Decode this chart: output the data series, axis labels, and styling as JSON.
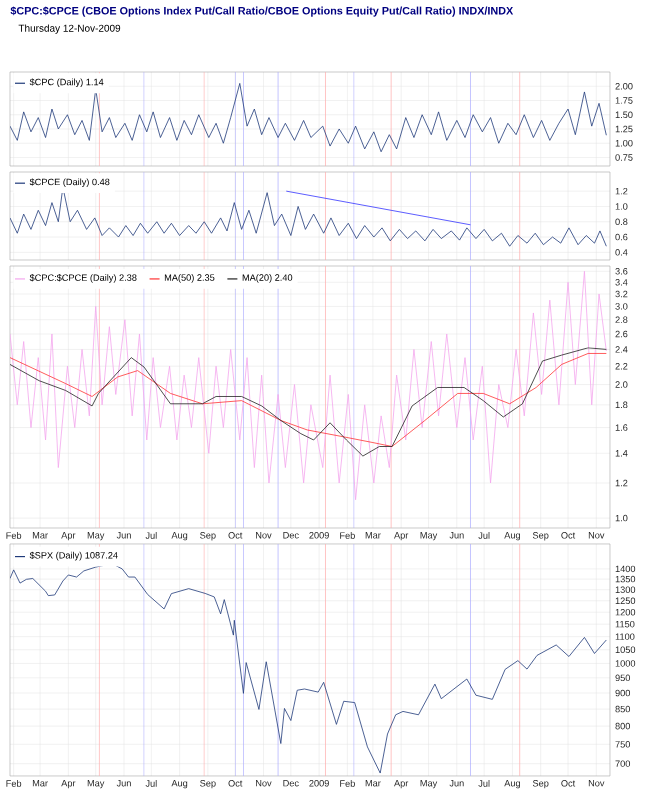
{
  "chart_data": [
    {
      "type": "line",
      "title": "$CPC:$CPCE (CBOE Options Index Put/Call Ratio/CBOE Options Equity Put/Call Ratio) INDX/INDX",
      "annotations": [
        "Thursday 12-Nov-2009"
      ],
      "series": [
        {
          "name": "$CPC (Daily) 1.14",
          "color": "#1f3a7a",
          "x": [
            "2008-01-28",
            "2008-02-05",
            "2008-02-12",
            "2008-02-20",
            "2008-02-28",
            "2008-03-07",
            "2008-03-14",
            "2008-03-21",
            "2008-03-31",
            "2008-04-08",
            "2008-04-16",
            "2008-04-24",
            "2008-05-01",
            "2008-05-08",
            "2008-05-16",
            "2008-05-23",
            "2008-06-02",
            "2008-06-10",
            "2008-06-18",
            "2008-06-26",
            "2008-07-03",
            "2008-07-11",
            "2008-07-21",
            "2008-07-29",
            "2008-08-06",
            "2008-08-14",
            "2008-08-22",
            "2008-09-02",
            "2008-09-10",
            "2008-09-18",
            "2008-09-26",
            "2008-10-06",
            "2008-10-14",
            "2008-10-22",
            "2008-10-30",
            "2008-11-07",
            "2008-11-17",
            "2008-11-25",
            "2008-12-05",
            "2008-12-15",
            "2008-12-23",
            "2009-01-05",
            "2009-01-13",
            "2009-01-23",
            "2009-02-02",
            "2009-02-10",
            "2009-02-20",
            "2009-03-02",
            "2009-03-10",
            "2009-03-19",
            "2009-03-27",
            "2009-04-06",
            "2009-04-15",
            "2009-04-24",
            "2009-05-04",
            "2009-05-12",
            "2009-05-21",
            "2009-06-01",
            "2009-06-10",
            "2009-06-19",
            "2009-06-29",
            "2009-07-08",
            "2009-07-17",
            "2009-07-27",
            "2009-08-05",
            "2009-08-14",
            "2009-08-24",
            "2009-09-02",
            "2009-09-11",
            "2009-09-21",
            "2009-10-01",
            "2009-10-09",
            "2009-10-19",
            "2009-10-27",
            "2009-11-04",
            "2009-11-12"
          ],
          "values": [
            1.3,
            1.05,
            1.55,
            1.2,
            1.45,
            1.1,
            1.6,
            1.25,
            1.5,
            1.15,
            1.4,
            1.05,
            1.95,
            1.2,
            1.45,
            1.1,
            1.35,
            1.05,
            1.5,
            1.2,
            1.55,
            1.1,
            1.45,
            1.05,
            1.4,
            1.15,
            1.5,
            1.1,
            1.35,
            1.0,
            1.45,
            2.05,
            1.3,
            1.6,
            1.15,
            1.45,
            1.1,
            1.35,
            1.05,
            1.4,
            1.1,
            1.3,
            0.95,
            1.25,
            1.0,
            1.3,
            0.9,
            1.2,
            0.85,
            1.15,
            0.9,
            1.45,
            1.1,
            1.5,
            1.15,
            1.55,
            1.05,
            1.4,
            1.1,
            1.5,
            1.2,
            1.45,
            1.0,
            1.35,
            1.15,
            1.5,
            1.1,
            1.4,
            1.05,
            1.35,
            1.6,
            1.15,
            1.9,
            1.3,
            1.7,
            1.14
          ]
        }
      ],
      "xlim": [
        "2008-01-28",
        "2009-11-16"
      ],
      "xticks": [
        {
          "value": "2008-02-01",
          "label": null
        },
        {
          "value": "2008-03-01",
          "label": null
        },
        {
          "value": "2008-04-01",
          "label": null
        },
        {
          "value": "2008-05-01",
          "label": null
        },
        {
          "value": "2008-06-01",
          "label": null
        },
        {
          "value": "2008-07-01",
          "label": null
        },
        {
          "value": "2008-08-01",
          "label": null
        },
        {
          "value": "2008-09-01",
          "label": null
        },
        {
          "value": "2008-10-01",
          "label": null
        },
        {
          "value": "2008-11-01",
          "label": null
        },
        {
          "value": "2008-12-01",
          "label": null
        },
        {
          "value": "2009-01-01",
          "label": null
        },
        {
          "value": "2009-02-01",
          "label": null
        },
        {
          "value": "2009-03-01",
          "label": null
        },
        {
          "value": "2009-04-01",
          "label": null
        },
        {
          "value": "2009-05-01",
          "label": null
        },
        {
          "value": "2009-06-01",
          "label": null
        },
        {
          "value": "2009-07-01",
          "label": null
        },
        {
          "value": "2009-08-01",
          "label": null
        },
        {
          "value": "2009-09-01",
          "label": null
        },
        {
          "value": "2009-10-01",
          "label": null
        },
        {
          "value": "2009-11-01",
          "label": null
        }
      ],
      "ylim": [
        0.6,
        2.25
      ],
      "yticks": [
        0.75,
        {
          "value": 1,
          "label": "1.00"
        },
        1.25,
        {
          "value": 1.5,
          "label": "1.50"
        },
        1.75,
        {
          "value": 2,
          "label": "2.00"
        }
      ],
      "grid": true,
      "legend": "top left",
      "tick_labels": "y",
      "ref_lines": [
        {
          "axis": "x",
          "value": "2008-05-05",
          "color": "#ffaaaa"
        },
        {
          "axis": "x",
          "value": "2008-08-28",
          "color": "#ffaaaa"
        },
        {
          "axis": "x",
          "value": "2009-01-08",
          "color": "#ffaaaa"
        },
        {
          "axis": "x",
          "value": "2009-03-21",
          "color": "#ffaaaa"
        },
        {
          "axis": "x",
          "value": "2009-08-09",
          "color": "#ffaaaa"
        },
        {
          "axis": "x",
          "value": "2008-06-23",
          "color": "#aaaaff"
        },
        {
          "axis": "x",
          "value": "2008-10-01",
          "color": "#aaaaff"
        },
        {
          "axis": "x",
          "value": "2008-10-10",
          "color": "#aaaaff"
        },
        {
          "axis": "x",
          "value": "2008-11-17",
          "color": "#aaaaff"
        },
        {
          "axis": "x",
          "value": "2009-02-08",
          "color": "#aaaaff"
        },
        {
          "axis": "x",
          "value": "2009-06-16",
          "color": "#aaaaff"
        }
      ]
    },
    {
      "type": "line",
      "series": [
        {
          "name": "$CPCE (Daily) 0.48",
          "color": "#1f3a7a",
          "x": [
            "2008-01-28",
            "2008-02-05",
            "2008-02-12",
            "2008-02-20",
            "2008-02-28",
            "2008-03-07",
            "2008-03-14",
            "2008-03-21",
            "2008-03-26",
            "2008-04-03",
            "2008-04-11",
            "2008-04-21",
            "2008-04-30",
            "2008-05-08",
            "2008-05-16",
            "2008-05-26",
            "2008-06-03",
            "2008-06-11",
            "2008-06-19",
            "2008-06-27",
            "2008-07-07",
            "2008-07-15",
            "2008-07-23",
            "2008-08-01",
            "2008-08-11",
            "2008-08-19",
            "2008-08-28",
            "2008-09-05",
            "2008-09-15",
            "2008-09-22",
            "2008-09-30",
            "2008-10-08",
            "2008-10-16",
            "2008-10-24",
            "2008-11-05",
            "2008-11-13",
            "2008-11-21",
            "2008-12-01",
            "2008-12-09",
            "2008-12-17",
            "2008-12-26",
            "2009-01-06",
            "2009-01-14",
            "2009-01-23",
            "2009-02-02",
            "2009-02-11",
            "2009-02-20",
            "2009-03-02",
            "2009-03-11",
            "2009-03-20",
            "2009-03-30",
            "2009-04-08",
            "2009-04-17",
            "2009-04-27",
            "2009-05-06",
            "2009-05-15",
            "2009-05-26",
            "2009-06-04",
            "2009-06-12",
            "2009-06-22",
            "2009-07-01",
            "2009-07-10",
            "2009-07-20",
            "2009-07-29",
            "2009-08-07",
            "2009-08-17",
            "2009-08-26",
            "2009-09-04",
            "2009-09-14",
            "2009-09-23",
            "2009-10-02",
            "2009-10-12",
            "2009-10-21",
            "2009-10-30",
            "2009-11-05",
            "2009-11-12"
          ],
          "values": [
            0.85,
            0.65,
            0.9,
            0.7,
            0.95,
            0.75,
            1.05,
            0.8,
            1.25,
            0.8,
            0.95,
            0.7,
            0.85,
            0.62,
            0.72,
            0.6,
            0.75,
            0.62,
            0.78,
            0.65,
            0.8,
            0.65,
            0.78,
            0.62,
            0.75,
            0.65,
            0.8,
            0.65,
            0.85,
            0.68,
            1.05,
            0.7,
            0.95,
            0.65,
            1.18,
            0.75,
            0.9,
            0.62,
            1.0,
            0.7,
            0.9,
            0.65,
            0.85,
            0.62,
            0.78,
            0.58,
            0.75,
            0.6,
            0.72,
            0.55,
            0.7,
            0.58,
            0.68,
            0.55,
            0.7,
            0.58,
            0.68,
            0.56,
            0.72,
            0.58,
            0.7,
            0.55,
            0.65,
            0.48,
            0.62,
            0.52,
            0.65,
            0.5,
            0.6,
            0.52,
            0.72,
            0.5,
            0.62,
            0.52,
            0.68,
            0.48
          ]
        },
        {
          "type": "line",
          "color": "#3333ff",
          "x": [
            "2008-11-26",
            "2009-06-16"
          ],
          "values": [
            1.2,
            0.76
          ]
        }
      ],
      "xlim": [
        "2008-01-28",
        "2009-11-16"
      ],
      "xticks": [
        {
          "value": "2008-02-01",
          "label": null
        },
        {
          "value": "2008-03-01",
          "label": null
        },
        {
          "value": "2008-04-01",
          "label": null
        },
        {
          "value": "2008-05-01",
          "label": null
        },
        {
          "value": "2008-06-01",
          "label": null
        },
        {
          "value": "2008-07-01",
          "label": null
        },
        {
          "value": "2008-08-01",
          "label": null
        },
        {
          "value": "2008-09-01",
          "label": null
        },
        {
          "value": "2008-10-01",
          "label": null
        },
        {
          "value": "2008-11-01",
          "label": null
        },
        {
          "value": "2008-12-01",
          "label": null
        },
        {
          "value": "2009-01-01",
          "label": null
        },
        {
          "value": "2009-02-01",
          "label": null
        },
        {
          "value": "2009-03-01",
          "label": null
        },
        {
          "value": "2009-04-01",
          "label": null
        },
        {
          "value": "2009-05-01",
          "label": null
        },
        {
          "value": "2009-06-01",
          "label": null
        },
        {
          "value": "2009-07-01",
          "label": null
        },
        {
          "value": "2009-08-01",
          "label": null
        },
        {
          "value": "2009-09-01",
          "label": null
        },
        {
          "value": "2009-10-01",
          "label": null
        },
        {
          "value": "2009-11-01",
          "label": null
        }
      ],
      "ylim": [
        0.3,
        1.45
      ],
      "yticks": [
        0.4,
        0.6,
        0.8,
        {
          "value": 1,
          "label": "1.0"
        },
        1.2
      ],
      "grid": true,
      "legend": "top left",
      "tick_labels": "y",
      "ref_lines": [
        {
          "axis": "x",
          "value": "2008-05-05",
          "color": "#ffaaaa"
        },
        {
          "axis": "x",
          "value": "2008-08-28",
          "color": "#ffaaaa"
        },
        {
          "axis": "x",
          "value": "2009-01-08",
          "color": "#ffaaaa"
        },
        {
          "axis": "x",
          "value": "2009-03-21",
          "color": "#ffaaaa"
        },
        {
          "axis": "x",
          "value": "2009-08-09",
          "color": "#ffaaaa"
        },
        {
          "axis": "x",
          "value": "2008-06-23",
          "color": "#aaaaff"
        },
        {
          "axis": "x",
          "value": "2008-10-01",
          "color": "#aaaaff"
        },
        {
          "axis": "x",
          "value": "2008-10-10",
          "color": "#aaaaff"
        },
        {
          "axis": "x",
          "value": "2008-11-17",
          "color": "#aaaaff"
        },
        {
          "axis": "x",
          "value": "2009-02-08",
          "color": "#aaaaff"
        },
        {
          "axis": "x",
          "value": "2009-06-16",
          "color": "#aaaaff"
        }
      ]
    },
    {
      "type": "line",
      "series": [
        {
          "name": "$CPC:$CPCE (Daily) 2.38",
          "color": "#f4a6ee",
          "x": [
            "2008-01-28",
            "2008-02-05",
            "2008-02-12",
            "2008-02-20",
            "2008-02-28",
            "2008-03-07",
            "2008-03-14",
            "2008-03-21",
            "2008-03-31",
            "2008-04-08",
            "2008-04-16",
            "2008-04-24",
            "2008-05-01",
            "2008-05-08",
            "2008-05-16",
            "2008-05-23",
            "2008-06-02",
            "2008-06-10",
            "2008-06-18",
            "2008-06-26",
            "2008-07-03",
            "2008-07-11",
            "2008-07-21",
            "2008-07-29",
            "2008-08-06",
            "2008-08-14",
            "2008-08-22",
            "2008-09-02",
            "2008-09-10",
            "2008-09-18",
            "2008-09-26",
            "2008-10-06",
            "2008-10-14",
            "2008-10-22",
            "2008-10-30",
            "2008-11-07",
            "2008-11-17",
            "2008-11-25",
            "2008-12-05",
            "2008-12-15",
            "2008-12-23",
            "2009-01-05",
            "2009-01-13",
            "2009-01-23",
            "2009-02-02",
            "2009-02-10",
            "2009-02-20",
            "2009-03-02",
            "2009-03-10",
            "2009-03-19",
            "2009-03-27",
            "2009-04-06",
            "2009-04-15",
            "2009-04-24",
            "2009-05-04",
            "2009-05-12",
            "2009-05-21",
            "2009-06-01",
            "2009-06-10",
            "2009-06-19",
            "2009-06-29",
            "2009-07-08",
            "2009-07-17",
            "2009-07-27",
            "2009-08-05",
            "2009-08-14",
            "2009-08-24",
            "2009-09-02",
            "2009-09-11",
            "2009-09-21",
            "2009-10-01",
            "2009-10-09",
            "2009-10-19",
            "2009-10-27",
            "2009-11-04",
            "2009-11-12"
          ],
          "values": [
            2.6,
            1.8,
            2.5,
            1.6,
            2.3,
            1.5,
            2.6,
            1.3,
            2.2,
            1.6,
            2.4,
            1.7,
            3.0,
            1.8,
            2.7,
            1.9,
            2.8,
            1.7,
            2.6,
            1.5,
            2.3,
            1.6,
            2.2,
            1.5,
            2.1,
            1.6,
            2.3,
            1.4,
            2.2,
            1.6,
            2.4,
            1.5,
            2.3,
            1.3,
            2.1,
            1.2,
            1.9,
            1.3,
            2.0,
            1.2,
            1.8,
            1.3,
            2.1,
            1.2,
            1.9,
            1.1,
            1.8,
            1.2,
            1.7,
            1.3,
            2.1,
            1.5,
            2.4,
            1.6,
            2.5,
            1.7,
            2.6,
            1.6,
            2.3,
            1.5,
            2.2,
            1.2,
            2.0,
            1.6,
            2.4,
            1.7,
            2.9,
            1.9,
            3.1,
            1.8,
            3.4,
            2.0,
            3.6,
            1.8,
            3.2,
            2.38
          ]
        },
        {
          "name": "MA(50) 2.35",
          "color": "#ff3333",
          "x": [
            "2008-01-28",
            "2008-03-29",
            "2008-04-27",
            "2008-05-25",
            "2008-06-16",
            "2008-07-22",
            "2008-08-26",
            "2008-10-08",
            "2008-11-20",
            "2008-12-19",
            "2009-01-24",
            "2009-03-01",
            "2009-03-22",
            "2009-04-27",
            "2009-06-02",
            "2009-06-30",
            "2009-07-29",
            "2009-08-27",
            "2009-09-24",
            "2009-10-23",
            "2009-11-12"
          ],
          "values": [
            2.3,
            2.01,
            1.88,
            2.08,
            2.15,
            1.91,
            1.81,
            1.84,
            1.66,
            1.58,
            1.53,
            1.48,
            1.45,
            1.66,
            1.91,
            1.91,
            1.81,
            1.97,
            2.22,
            2.35,
            2.35
          ]
        },
        {
          "name": "MA(20) 2.40",
          "color": "#222222",
          "x": [
            "2008-01-28",
            "2008-02-29",
            "2008-03-29",
            "2008-04-27",
            "2008-05-04",
            "2008-06-09",
            "2008-06-23",
            "2008-07-22",
            "2008-08-26",
            "2008-09-10",
            "2008-10-08",
            "2008-10-30",
            "2008-11-20",
            "2008-12-12",
            "2008-12-26",
            "2009-01-13",
            "2009-01-31",
            "2009-02-18",
            "2009-03-08",
            "2009-03-22",
            "2009-04-13",
            "2009-05-11",
            "2009-06-09",
            "2009-06-30",
            "2009-07-22",
            "2009-08-12",
            "2009-09-03",
            "2009-09-24",
            "2009-10-23",
            "2009-11-12"
          ],
          "values": [
            2.22,
            2.04,
            1.94,
            1.79,
            1.91,
            2.3,
            2.19,
            1.81,
            1.81,
            1.88,
            1.88,
            1.79,
            1.66,
            1.55,
            1.5,
            1.64,
            1.5,
            1.38,
            1.45,
            1.45,
            1.79,
            1.97,
            1.97,
            1.84,
            1.69,
            1.81,
            2.26,
            2.33,
            2.42,
            2.4
          ]
        }
      ],
      "xlim": [
        "2008-01-28",
        "2009-11-16"
      ],
      "xticks": [
        {
          "value": "2008-02-01",
          "label": "Feb"
        },
        {
          "value": "2008-03-01",
          "label": "Mar"
        },
        {
          "value": "2008-04-01",
          "label": "Apr"
        },
        {
          "value": "2008-05-01",
          "label": "May"
        },
        {
          "value": "2008-06-01",
          "label": "Jun"
        },
        {
          "value": "2008-07-01",
          "label": "Jul"
        },
        {
          "value": "2008-08-01",
          "label": "Aug"
        },
        {
          "value": "2008-09-01",
          "label": "Sep"
        },
        {
          "value": "2008-10-01",
          "label": "Oct"
        },
        {
          "value": "2008-11-01",
          "label": "Nov"
        },
        {
          "value": "2008-12-01",
          "label": "Dec"
        },
        {
          "value": "2009-01-01",
          "label": "2009"
        },
        {
          "value": "2009-02-01",
          "label": "Feb"
        },
        {
          "value": "2009-03-01",
          "label": "Mar"
        },
        {
          "value": "2009-04-01",
          "label": "Apr"
        },
        {
          "value": "2009-05-01",
          "label": "May"
        },
        {
          "value": "2009-06-01",
          "label": "Jun"
        },
        {
          "value": "2009-07-01",
          "label": "Jul"
        },
        {
          "value": "2009-08-01",
          "label": "Aug"
        },
        {
          "value": "2009-09-01",
          "label": "Sep"
        },
        {
          "value": "2009-10-01",
          "label": "Oct"
        },
        {
          "value": "2009-11-01",
          "label": "Nov"
        }
      ],
      "ylim": [
        0.95,
        3.7
      ],
      "yticks": [
        {
          "value": 1,
          "label": "1.0"
        },
        1.2,
        1.4,
        1.6,
        1.8,
        {
          "value": 2,
          "label": "2.0"
        },
        2.2,
        2.4,
        2.6,
        2.8,
        {
          "value": 3,
          "label": "3.0"
        },
        3.2,
        3.4,
        3.6
      ],
      "log": true,
      "grid": true,
      "legend": "top left",
      "ref_lines": [
        {
          "axis": "x",
          "value": "2008-05-05",
          "color": "#ffaaaa"
        },
        {
          "axis": "x",
          "value": "2008-08-28",
          "color": "#ffaaaa"
        },
        {
          "axis": "x",
          "value": "2009-01-08",
          "color": "#ffaaaa"
        },
        {
          "axis": "x",
          "value": "2009-03-21",
          "color": "#ffaaaa"
        },
        {
          "axis": "x",
          "value": "2009-08-09",
          "color": "#ffaaaa"
        },
        {
          "axis": "x",
          "value": "2008-06-23",
          "color": "#aaaaff"
        },
        {
          "axis": "x",
          "value": "2008-10-01",
          "color": "#aaaaff"
        },
        {
          "axis": "x",
          "value": "2008-10-10",
          "color": "#aaaaff"
        },
        {
          "axis": "x",
          "value": "2008-11-17",
          "color": "#aaaaff"
        },
        {
          "axis": "x",
          "value": "2009-02-08",
          "color": "#aaaaff"
        },
        {
          "axis": "x",
          "value": "2009-06-16",
          "color": "#aaaaff"
        }
      ]
    },
    {
      "type": "line",
      "series": [
        {
          "name": "$SPX (Daily) 1087.24",
          "color": "#1f3a7a",
          "x": [
            "2008-01-28",
            "2008-02-01",
            "2008-02-08",
            "2008-02-15",
            "2008-02-22",
            "2008-03-07",
            "2008-03-10",
            "2008-03-17",
            "2008-03-26",
            "2008-04-01",
            "2008-04-10",
            "2008-04-18",
            "2008-05-01",
            "2008-05-19",
            "2008-05-30",
            "2008-06-06",
            "2008-06-13",
            "2008-06-27",
            "2008-07-15",
            "2008-07-23",
            "2008-08-11",
            "2008-08-29",
            "2008-09-08",
            "2008-09-15",
            "2008-09-19",
            "2008-09-29",
            "2008-09-30",
            "2008-10-10",
            "2008-10-13",
            "2008-10-27",
            "2008-11-04",
            "2008-11-20",
            "2008-11-24",
            "2008-12-01",
            "2008-12-08",
            "2008-12-16",
            "2008-12-31",
            "2009-01-06",
            "2009-01-20",
            "2009-01-28",
            "2009-02-09",
            "2009-02-23",
            "2009-03-09",
            "2009-03-17",
            "2009-03-26",
            "2009-04-03",
            "2009-04-20",
            "2009-05-08",
            "2009-05-15",
            "2009-06-12",
            "2009-06-22",
            "2009-07-10",
            "2009-07-24",
            "2009-08-07",
            "2009-08-17",
            "2009-08-28",
            "2009-09-18",
            "2009-10-02",
            "2009-10-19",
            "2009-10-30",
            "2009-11-12"
          ],
          "values": [
            1353,
            1395,
            1331,
            1349,
            1353,
            1293,
            1273,
            1276,
            1341,
            1370,
            1360,
            1390,
            1409,
            1426,
            1400,
            1360,
            1360,
            1278,
            1214,
            1282,
            1305,
            1283,
            1267,
            1193,
            1255,
            1106,
            1166,
            899,
            1003,
            849,
            1006,
            752,
            852,
            816,
            909,
            913,
            903,
            935,
            805,
            874,
            870,
            743,
            677,
            778,
            833,
            843,
            833,
            929,
            882,
            946,
            893,
            880,
            979,
            1010,
            980,
            1029,
            1068,
            1025,
            1097,
            1036,
            1087
          ]
        }
      ],
      "xlim": [
        "2008-01-28",
        "2009-11-16"
      ],
      "xticks": [
        {
          "value": "2008-02-01",
          "label": "Feb"
        },
        {
          "value": "2008-03-01",
          "label": "Mar"
        },
        {
          "value": "2008-04-01",
          "label": "Apr"
        },
        {
          "value": "2008-05-01",
          "label": "May"
        },
        {
          "value": "2008-06-01",
          "label": "Jun"
        },
        {
          "value": "2008-07-01",
          "label": "Jul"
        },
        {
          "value": "2008-08-01",
          "label": "Aug"
        },
        {
          "value": "2008-09-01",
          "label": "Sep"
        },
        {
          "value": "2008-10-01",
          "label": "Oct"
        },
        {
          "value": "2008-11-01",
          "label": "Nov"
        },
        {
          "value": "2008-12-01",
          "label": "Dec"
        },
        {
          "value": "2009-01-01",
          "label": "2009"
        },
        {
          "value": "2009-02-01",
          "label": "Feb"
        },
        {
          "value": "2009-03-01",
          "label": "Mar"
        },
        {
          "value": "2009-04-01",
          "label": "Apr"
        },
        {
          "value": "2009-05-01",
          "label": "May"
        },
        {
          "value": "2009-06-01",
          "label": "Jun"
        },
        {
          "value": "2009-07-01",
          "label": "Jul"
        },
        {
          "value": "2009-08-01",
          "label": "Aug"
        },
        {
          "value": "2009-09-01",
          "label": "Sep"
        },
        {
          "value": "2009-10-01",
          "label": "Oct"
        },
        {
          "value": "2009-11-01",
          "label": "Nov"
        }
      ],
      "ylim": [
        670,
        1530
      ],
      "yticks": [
        700,
        750,
        800,
        850,
        900,
        950,
        1000,
        1050,
        1100,
        1150,
        1200,
        1250,
        1300,
        1350,
        1400
      ],
      "log": true,
      "grid": true,
      "legend": "top left",
      "ref_lines": [
        {
          "axis": "x",
          "value": "2008-05-05",
          "color": "#ffaaaa"
        },
        {
          "axis": "x",
          "value": "2008-08-28",
          "color": "#ffaaaa"
        },
        {
          "axis": "x",
          "value": "2009-01-08",
          "color": "#ffaaaa"
        },
        {
          "axis": "x",
          "value": "2009-03-21",
          "color": "#ffaaaa"
        },
        {
          "axis": "x",
          "value": "2009-08-09",
          "color": "#ffaaaa"
        },
        {
          "axis": "x",
          "value": "2008-06-23",
          "color": "#aaaaff"
        },
        {
          "axis": "x",
          "value": "2008-10-01",
          "color": "#aaaaff"
        },
        {
          "axis": "x",
          "value": "2008-10-10",
          "color": "#aaaaff"
        },
        {
          "axis": "x",
          "value": "2008-11-17",
          "color": "#aaaaff"
        },
        {
          "axis": "x",
          "value": "2009-02-08",
          "color": "#aaaaff"
        },
        {
          "axis": "x",
          "value": "2009-06-16",
          "color": "#aaaaff"
        }
      ]
    }
  ]
}
